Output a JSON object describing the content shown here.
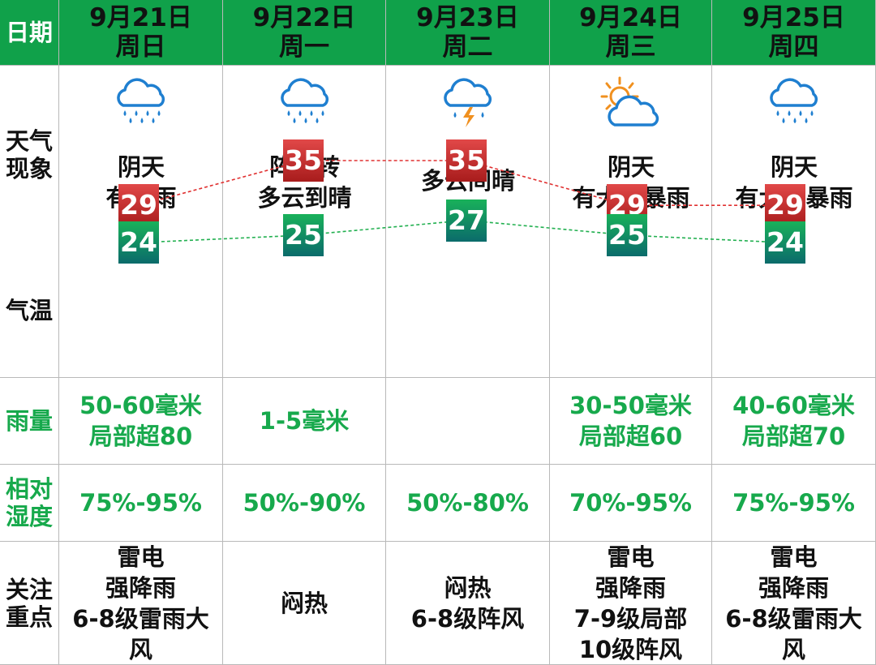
{
  "header": {
    "date_label": "日期",
    "days": [
      {
        "date": "9月21日",
        "weekday": "周日"
      },
      {
        "date": "9月22日",
        "weekday": "周一"
      },
      {
        "date": "9月23日",
        "weekday": "周二"
      },
      {
        "date": "9月24日",
        "weekday": "周三"
      },
      {
        "date": "9月25日",
        "weekday": "周四"
      }
    ]
  },
  "labels": {
    "weather": [
      "天气",
      "现象"
    ],
    "temperature": "气温",
    "rainfall": "雨量",
    "humidity": [
      "相对",
      "湿度"
    ],
    "focus": [
      "关注",
      "重点"
    ]
  },
  "weather": [
    {
      "icon": "heavy-rain-icon",
      "lines": [
        "阴天",
        "有暴雨"
      ]
    },
    {
      "icon": "heavy-rain-icon",
      "lines": [
        "阵雨转",
        "多云到晴"
      ]
    },
    {
      "icon": "thunderstorm-icon",
      "lines": [
        "多云间晴"
      ]
    },
    {
      "icon": "partly-cloudy-icon",
      "lines": [
        "阴天",
        "有大到暴雨"
      ]
    },
    {
      "icon": "heavy-rain-icon",
      "lines": [
        "阴天",
        "有大到暴雨"
      ]
    }
  ],
  "temperature": {
    "high": [
      29,
      35,
      35,
      29,
      29
    ],
    "low": [
      24,
      25,
      27,
      25,
      24
    ]
  },
  "rainfall": [
    [
      "50-60毫米",
      "局部超80"
    ],
    [
      "1-5毫米"
    ],
    [],
    [
      "30-50毫米",
      "局部超60"
    ],
    [
      "40-60毫米",
      "局部超70"
    ]
  ],
  "humidity": [
    "75%-95%",
    "50%-90%",
    "50%-80%",
    "70%-95%",
    "75%-95%"
  ],
  "focus": [
    [
      "雷电",
      "强降雨",
      "6-8级雷雨大",
      "风"
    ],
    [
      "闷热"
    ],
    [
      "闷热",
      "6-8级阵风"
    ],
    [
      "雷电",
      "强降雨",
      "7-9级局部",
      "10级阵风"
    ],
    [
      "雷电",
      "强降雨",
      "6-8级雷雨大",
      "风"
    ]
  ],
  "colors": {
    "header_bg": "#10a14a",
    "green_text": "#17a94c",
    "high_line": "#e03030",
    "low_line": "#22b050",
    "rain_cloud": "#1f7fd0",
    "sun": "#f0901f"
  }
}
